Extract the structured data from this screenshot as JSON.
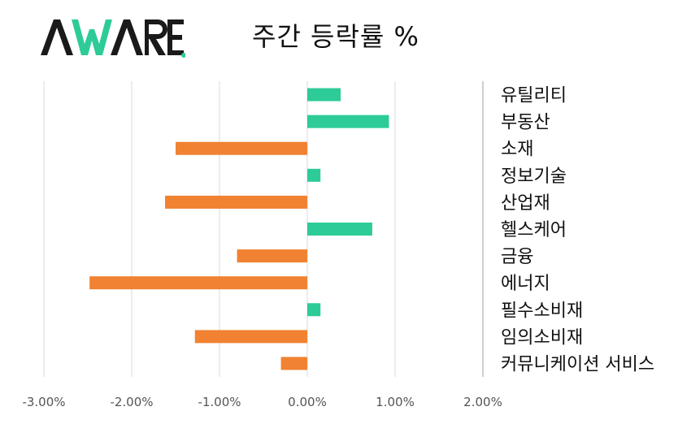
{
  "brand": {
    "logo_text": "AWARE"
  },
  "colors": {
    "positive": "#2DCB98",
    "negative": "#F08232",
    "grid": "#D9D9D9",
    "axis": "#555555",
    "divider": "#BFBFBF"
  },
  "chart_data": {
    "type": "bar",
    "orientation": "horizontal",
    "title": "주간 등락률 %",
    "categories": [
      "유틸리티",
      "부동산",
      "소재",
      "정보기술",
      "산업재",
      "헬스케어",
      "금융",
      "에너지",
      "필수소비재",
      "임의소비재",
      "커뮤니케이션 서비스"
    ],
    "values": [
      0.38,
      0.93,
      -1.5,
      0.15,
      -1.62,
      0.74,
      -0.8,
      -2.48,
      0.15,
      -1.28,
      -0.3
    ],
    "xlim": [
      -3.0,
      2.0
    ],
    "x_ticks": [
      -3.0,
      -2.0,
      -1.0,
      0.0,
      1.0,
      2.0
    ],
    "x_tick_labels": [
      "-3.00%",
      "-2.00%",
      "-1.00%",
      "0.00%",
      "1.00%",
      "2.00%"
    ],
    "grid": true,
    "xlabel": "",
    "ylabel": ""
  }
}
